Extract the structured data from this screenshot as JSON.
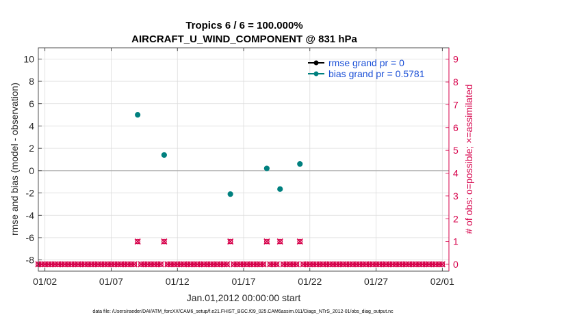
{
  "chart_data": {
    "type": "scatter",
    "title_line1": "Tropics 6 / 6 = 100.000%",
    "title_line2": "AIRCRAFT_U_WIND_COMPONENT @ 831 hPa",
    "ylabel_left": "rmse and bias (model - observation)",
    "ylabel_right": "# of obs: o=possible; ×=assimilated",
    "xlabel": "Jan.01,2012 00:00:00 start",
    "footer": "data file: /Users/raeder/DAI/ATM_forcXX/CAM6_setup/f.e21.FHIST_BGC.f09_025.CAM6assim.011/Diags_NTrS_2012-01/obs_diag_output.nc",
    "xlim": [
      0.5,
      31.5
    ],
    "ylim_left": [
      -9,
      11
    ],
    "ylim_right": [
      -0.3,
      9.5
    ],
    "x_ticks": [
      {
        "x": 1.0,
        "label": "01/02"
      },
      {
        "x": 6.0,
        "label": "01/07"
      },
      {
        "x": 11.0,
        "label": "01/12"
      },
      {
        "x": 16.0,
        "label": "01/17"
      },
      {
        "x": 21.0,
        "label": "01/22"
      },
      {
        "x": 26.0,
        "label": "01/27"
      },
      {
        "x": 31.0,
        "label": "02/01"
      }
    ],
    "y_ticks_left": [
      {
        "v": -8,
        "label": "-8"
      },
      {
        "v": -6,
        "label": "-6"
      },
      {
        "v": -4,
        "label": "-4"
      },
      {
        "v": -2,
        "label": "-2"
      },
      {
        "v": 0,
        "label": "0"
      },
      {
        "v": 2,
        "label": "2"
      },
      {
        "v": 4,
        "label": "4"
      },
      {
        "v": 6,
        "label": "6"
      },
      {
        "v": 8,
        "label": "8"
      },
      {
        "v": 10,
        "label": "10"
      }
    ],
    "y_ticks_right": [
      {
        "v": 0,
        "label": "0"
      },
      {
        "v": 1,
        "label": "1"
      },
      {
        "v": 2,
        "label": "2"
      },
      {
        "v": 3,
        "label": "3"
      },
      {
        "v": 4,
        "label": "4"
      },
      {
        "v": 5,
        "label": "5"
      },
      {
        "v": 6,
        "label": "6"
      },
      {
        "v": 7,
        "label": "7"
      },
      {
        "v": 8,
        "label": "8"
      },
      {
        "v": 9,
        "label": "9"
      }
    ],
    "zero_line": 0,
    "series": [
      {
        "name": "rmse",
        "legend": "rmse grand pr = 0",
        "color": "#000000",
        "x": [],
        "values": []
      },
      {
        "name": "bias",
        "legend": "bias grand pr = 0.5781",
        "color": "#00807f",
        "x": [
          8.0,
          10.0,
          15.0,
          17.75,
          18.75,
          20.25
        ],
        "values": [
          5.0,
          1.4,
          -2.1,
          0.2,
          -1.65,
          0.6
        ]
      }
    ],
    "obs_count": {
      "color": "#d6004a",
      "x_start": 0.0,
      "x_step": 0.25,
      "n": 125,
      "ones_at": [
        8.0,
        10.0,
        15.0,
        17.75,
        18.75,
        20.25
      ]
    }
  }
}
